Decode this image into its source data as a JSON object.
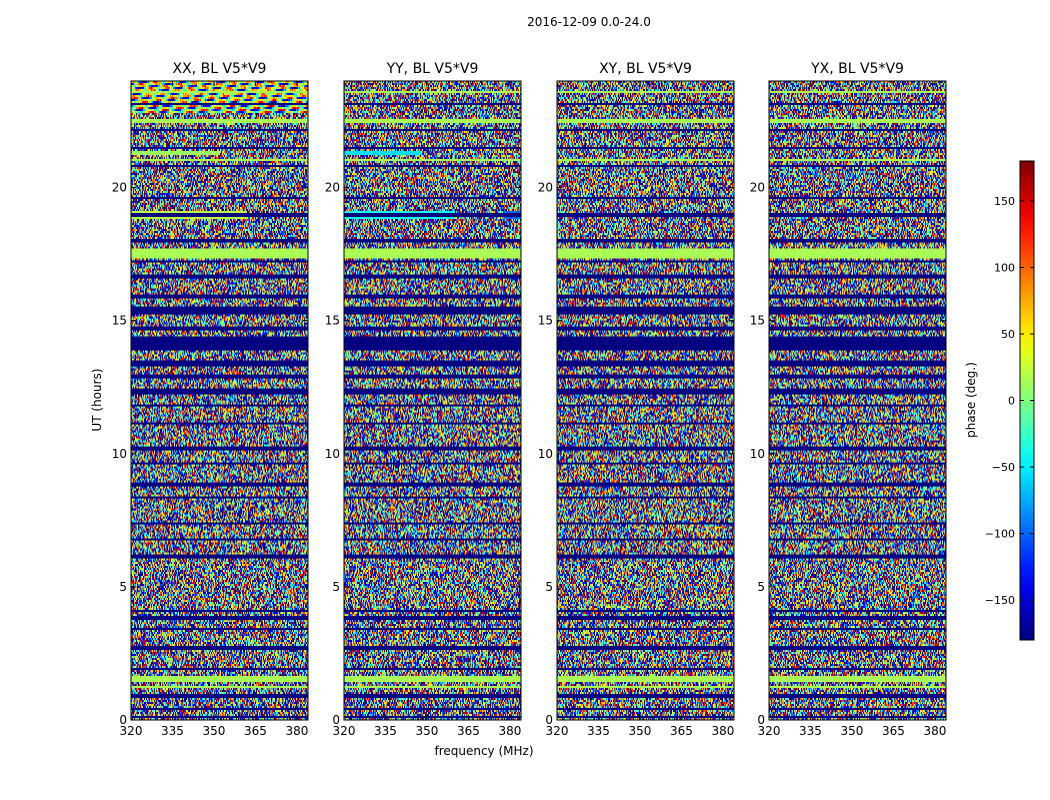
{
  "figure": {
    "suptitle": "2016-12-09 0.0-24.0"
  },
  "chart_data": {
    "type": "heatmap",
    "title": "2016-12-09 0.0-24.0",
    "xlabel": "frequency (MHz)",
    "ylabel": "UT (hours)",
    "xlim": [
      320,
      384
    ],
    "ylim": [
      0,
      24
    ],
    "x_ticks": [
      320,
      335,
      350,
      365,
      380
    ],
    "y_ticks": [
      0,
      5,
      10,
      15,
      20
    ],
    "panels": [
      {
        "title": "XX, BL V5*V9",
        "polarization": "XX"
      },
      {
        "title": "YY, BL V5*V9",
        "polarization": "YY"
      },
      {
        "title": "XY, BL V5*V9",
        "polarization": "XY"
      },
      {
        "title": "YX, BL V5*V9",
        "polarization": "YX"
      }
    ],
    "colorbar": {
      "label": "phase (deg.)",
      "colormap": "jet",
      "range": [
        -180,
        180
      ],
      "ticks": [
        -150,
        -100,
        -50,
        0,
        50,
        100,
        150
      ]
    },
    "band_patterns": {
      "flagged_deg": -180,
      "constant_deg": 15,
      "flagged_rows_ut": [
        [
          0.05,
          0.12
        ],
        [
          0.4,
          0.48
        ],
        [
          0.85,
          0.95
        ],
        [
          1.85,
          1.95
        ],
        [
          2.65,
          2.78
        ],
        [
          3.35,
          3.42
        ],
        [
          3.78,
          3.92
        ],
        [
          4.05,
          4.12
        ],
        [
          6.1,
          6.25
        ],
        [
          6.75,
          6.85
        ],
        [
          7.35,
          7.45
        ],
        [
          8.3,
          8.4
        ],
        [
          8.75,
          8.9
        ],
        [
          9.6,
          9.7
        ],
        [
          10.15,
          10.3
        ],
        [
          11.1,
          11.2
        ],
        [
          11.75,
          11.85
        ],
        [
          12.2,
          12.45
        ],
        [
          12.85,
          13.0
        ],
        [
          13.3,
          13.5
        ],
        [
          13.85,
          14.4
        ],
        [
          14.6,
          14.75
        ],
        [
          15.2,
          15.55
        ],
        [
          15.85,
          16.0
        ],
        [
          16.6,
          16.75
        ],
        [
          17.15,
          17.25
        ],
        [
          17.9,
          18.05
        ],
        [
          18.9,
          19.05
        ],
        [
          19.55,
          19.65
        ],
        [
          20.75,
          20.85
        ],
        [
          21.45,
          21.55
        ],
        [
          22.1,
          22.2
        ],
        [
          23.1,
          23.15
        ]
      ],
      "constant_rows_ut": [
        [
          1.2,
          1.3
        ],
        [
          1.45,
          1.62
        ],
        [
          17.3,
          17.7
        ],
        [
          21.0,
          21.1
        ],
        [
          22.45,
          22.55
        ],
        [
          23.55,
          23.62
        ]
      ],
      "partial_rows": [
        {
          "panel": 0,
          "ut": [
            18.8,
            19.1
          ],
          "freq_end": 362,
          "deg": 20
        },
        {
          "panel": 0,
          "ut": [
            21.25,
            21.4
          ],
          "freq_end": 352,
          "deg": 10
        },
        {
          "panel": 1,
          "ut": [
            18.8,
            19.1
          ],
          "freq_end": 360,
          "deg": -40
        },
        {
          "panel": 1,
          "ut": [
            21.25,
            21.4
          ],
          "freq_end": 348,
          "deg": -55
        },
        {
          "panel": 1,
          "ut": [
            18.8,
            19.1
          ],
          "freq_start": 378,
          "deg": -100
        }
      ],
      "fringe_region_ut": [
        22.8,
        24.0
      ],
      "fringe_panels": [
        0
      ]
    }
  }
}
